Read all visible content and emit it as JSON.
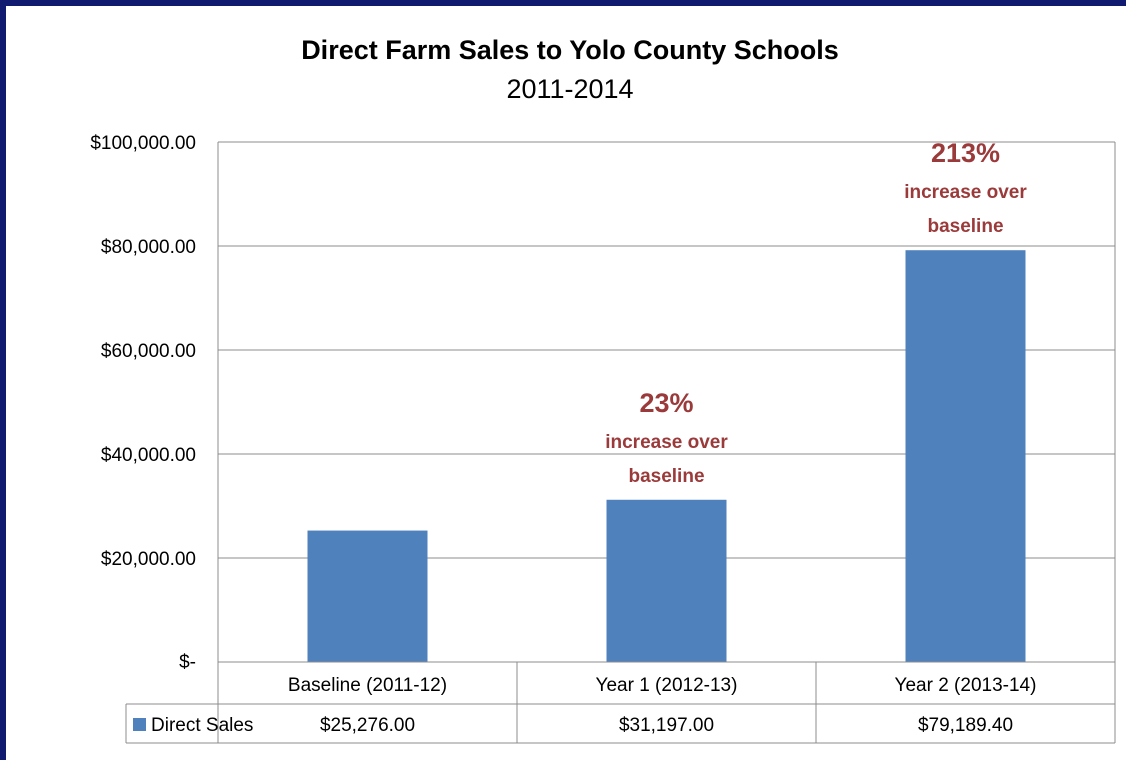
{
  "chart_data": {
    "type": "bar",
    "title": "Direct Farm Sales to Yolo County Schools",
    "subtitle": "2011-2014",
    "categories": [
      "Baseline (2011-12)",
      "Year 1 (2012-13)",
      "Year 2 (2013-14)"
    ],
    "series": [
      {
        "name": "Direct Sales",
        "values": [
          25276.0,
          31197.0,
          79189.4
        ]
      }
    ],
    "data_table_values": [
      "$25,276.00",
      "$31,197.00",
      "$79,189.40"
    ],
    "ylim": [
      0,
      100000
    ],
    "yticks": [
      0,
      20000,
      40000,
      60000,
      80000,
      100000
    ],
    "ytick_labels": [
      "$-",
      "$20,000.00",
      "$40,000.00",
      "$60,000.00",
      "$80,000.00",
      "$100,000.00"
    ],
    "grid": true,
    "legend_placement": "data-table-row",
    "annotations": [
      {
        "category": "Year 1 (2012-13)",
        "percent": "23%",
        "line1": "increase over",
        "line2": "baseline"
      },
      {
        "category": "Year 2 (2013-14)",
        "percent": "213%",
        "line1": "increase over",
        "line2": "baseline"
      }
    ],
    "colors": {
      "bar": "#4f81bd",
      "annotation": "#9b3a3a",
      "grid": "#8c8c8c",
      "border": "#8c8c8c",
      "frame": "#101a6e"
    }
  }
}
